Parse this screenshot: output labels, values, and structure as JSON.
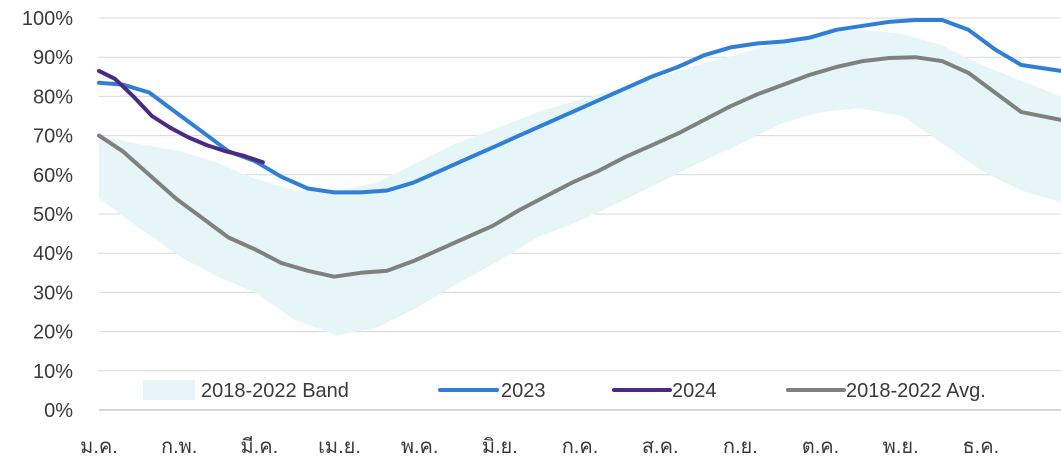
{
  "chart_data": {
    "type": "line",
    "title": "",
    "xlabel": "",
    "ylabel": "",
    "ylim": [
      0,
      100
    ],
    "yticks": [
      "0%",
      "10%",
      "20%",
      "30%",
      "40%",
      "50%",
      "60%",
      "70%",
      "80%",
      "90%",
      "100%"
    ],
    "categories": [
      "ม.ค.",
      "ก.พ.",
      "มี.ค.",
      "เม.ย.",
      "พ.ค.",
      "มิ.ย.",
      "ก.ค.",
      "ส.ค.",
      "ก.ย.",
      "ต.ค.",
      "พ.ย.",
      "ธ.ค."
    ],
    "grid": true,
    "legend_position": "bottom",
    "band": {
      "name": "2018-2022 Band",
      "color": "#e6f6f8",
      "x": [
        1,
        15,
        32,
        46,
        60,
        75,
        91,
        106,
        121,
        136,
        152,
        167,
        182,
        198,
        213,
        228,
        244,
        259,
        274,
        289,
        305,
        320,
        335,
        350,
        365
      ],
      "low": [
        54,
        47,
        39,
        34,
        30,
        23,
        19,
        21,
        26,
        32,
        38,
        44,
        48,
        53,
        58,
        63,
        68,
        73,
        76,
        77,
        75,
        68,
        61,
        56,
        53
      ],
      "high": [
        70,
        68,
        66,
        63,
        59,
        56,
        56,
        58,
        63,
        68,
        72,
        76,
        79,
        82,
        85,
        88,
        91,
        94,
        96,
        97,
        96,
        93,
        88,
        84,
        80
      ]
    },
    "series": [
      {
        "name": "2023",
        "color": "#2f7fd8",
        "x": [
          1,
          10,
          20,
          30,
          40,
          50,
          60,
          70,
          80,
          90,
          100,
          110,
          120,
          130,
          140,
          150,
          160,
          170,
          180,
          190,
          200,
          210,
          220,
          230,
          240,
          250,
          260,
          270,
          280,
          290,
          300,
          310,
          320,
          330,
          340,
          350,
          365
        ],
        "values": [
          83.5,
          83,
          81,
          76,
          71,
          66,
          63.5,
          59.5,
          56.5,
          55.5,
          55.5,
          56,
          58,
          61,
          64,
          67,
          70,
          73,
          76,
          79,
          82,
          85,
          87.5,
          90.5,
          92.5,
          93.5,
          94,
          95,
          97,
          98,
          99,
          99.5,
          99.5,
          97,
          92,
          88,
          86.5
        ]
      },
      {
        "name": "2024",
        "color": "#4b2a83",
        "x": [
          1,
          7,
          14,
          21,
          28,
          35,
          42,
          49,
          56,
          63
        ],
        "values": [
          86.5,
          84.5,
          80,
          75,
          72,
          69.5,
          67.5,
          66,
          64.8,
          63.2
        ]
      },
      {
        "name": "2018-2022 Avg.",
        "color": "#808080",
        "x": [
          1,
          10,
          20,
          30,
          40,
          50,
          60,
          70,
          80,
          90,
          100,
          110,
          120,
          130,
          140,
          150,
          160,
          170,
          180,
          190,
          200,
          210,
          220,
          230,
          240,
          250,
          260,
          270,
          280,
          290,
          300,
          310,
          320,
          330,
          340,
          350,
          365
        ],
        "values": [
          70,
          66,
          60,
          54,
          49,
          44,
          41,
          37.5,
          35.5,
          34,
          35,
          35.5,
          38,
          41,
          44,
          47,
          51,
          54.5,
          58,
          61,
          64.5,
          67.5,
          70.5,
          74,
          77.5,
          80.5,
          83,
          85.5,
          87.5,
          89,
          89.8,
          90,
          89,
          86,
          81,
          76,
          74
        ]
      }
    ]
  }
}
